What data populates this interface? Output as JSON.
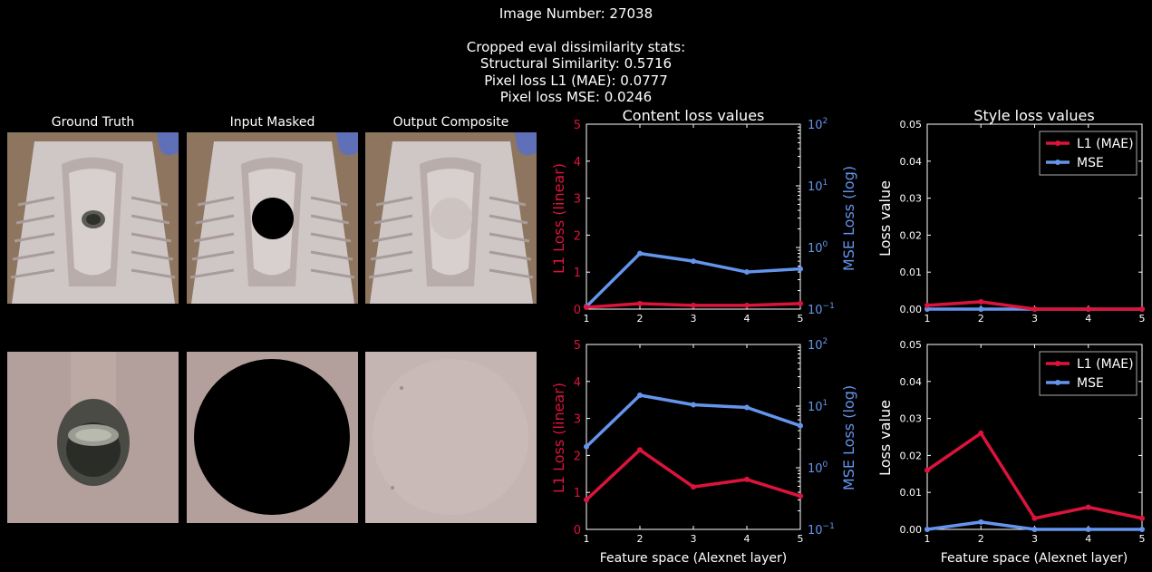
{
  "header": {
    "image_number": "Image Number: 27038",
    "stats_title": "Cropped eval dissimilarity stats:",
    "ssim": "Structural Similarity: 0.5716",
    "l1": "Pixel loss L1 (MAE): 0.0777",
    "mse": "Pixel loss MSE: 0.0246"
  },
  "thumbnails": {
    "titles": [
      "Ground Truth",
      "Input Masked",
      "Output Composite"
    ]
  },
  "colors": {
    "l1": "#dc143c",
    "mse": "#6495ed",
    "background": "#000000",
    "axes": "#ffffff"
  },
  "chart_data": [
    {
      "id": "content-top",
      "type": "line",
      "title": "Content loss values",
      "xlabel": "",
      "ylabel_left": "L1 Loss (linear)",
      "ylabel_right": "MSE Loss (log)",
      "x": [
        1,
        2,
        3,
        4,
        5
      ],
      "xlim": [
        1,
        5
      ],
      "ylim_left": [
        0,
        5
      ],
      "ylim_right_log": [
        0.1,
        100
      ],
      "yticks_left": [
        "0",
        "1",
        "2",
        "3",
        "4",
        "5"
      ],
      "series": [
        {
          "axis": "left",
          "values": [
            0.05,
            0.15,
            0.1,
            0.1,
            0.15
          ]
        },
        {
          "axis": "right",
          "values": [
            0.11,
            0.8,
            0.6,
            0.4,
            0.45
          ]
        }
      ]
    },
    {
      "id": "content-bottom",
      "type": "line",
      "title": "",
      "xlabel": "Feature space (Alexnet layer)",
      "ylabel_left": "L1 Loss (linear)",
      "ylabel_right": "MSE Loss (log)",
      "x": [
        1,
        2,
        3,
        4,
        5
      ],
      "xlim": [
        1,
        5
      ],
      "ylim_left": [
        0,
        5
      ],
      "ylim_right_log": [
        0.1,
        100
      ],
      "yticks_left": [
        "0",
        "1",
        "2",
        "3",
        "4",
        "5"
      ],
      "series": [
        {
          "axis": "left",
          "values": [
            0.8,
            2.15,
            1.15,
            1.35,
            0.9
          ]
        },
        {
          "axis": "right",
          "values": [
            2.2,
            15,
            10.5,
            9.5,
            4.8
          ]
        }
      ]
    },
    {
      "id": "style-top",
      "type": "line",
      "title": "Style loss values",
      "xlabel": "",
      "ylabel": "Loss value",
      "x": [
        1,
        2,
        3,
        4,
        5
      ],
      "xlim": [
        1,
        5
      ],
      "ylim": [
        0,
        0.05
      ],
      "yticks": [
        "0.00",
        "0.01",
        "0.02",
        "0.03",
        "0.04",
        "0.05"
      ],
      "legend": [
        "L1 (MAE)",
        "MSE"
      ],
      "legend_position": "top-right",
      "series": [
        {
          "name": "L1 (MAE)",
          "values": [
            0.001,
            0.002,
            0.0,
            0.0,
            0.0
          ]
        },
        {
          "name": "MSE",
          "values": [
            0.0,
            0.0,
            0.0,
            0.0,
            0.0
          ]
        }
      ]
    },
    {
      "id": "style-bottom",
      "type": "line",
      "title": "",
      "xlabel": "Feature space (Alexnet layer)",
      "ylabel": "Loss value",
      "x": [
        1,
        2,
        3,
        4,
        5
      ],
      "xlim": [
        1,
        5
      ],
      "ylim": [
        0,
        0.05
      ],
      "yticks": [
        "0.00",
        "0.01",
        "0.02",
        "0.03",
        "0.04",
        "0.05"
      ],
      "legend": [
        "L1 (MAE)",
        "MSE"
      ],
      "legend_position": "top-right",
      "series": [
        {
          "name": "L1 (MAE)",
          "values": [
            0.016,
            0.026,
            0.003,
            0.006,
            0.003
          ]
        },
        {
          "name": "MSE",
          "values": [
            0.0,
            0.002,
            0.0,
            0.0,
            0.0
          ]
        }
      ]
    }
  ]
}
